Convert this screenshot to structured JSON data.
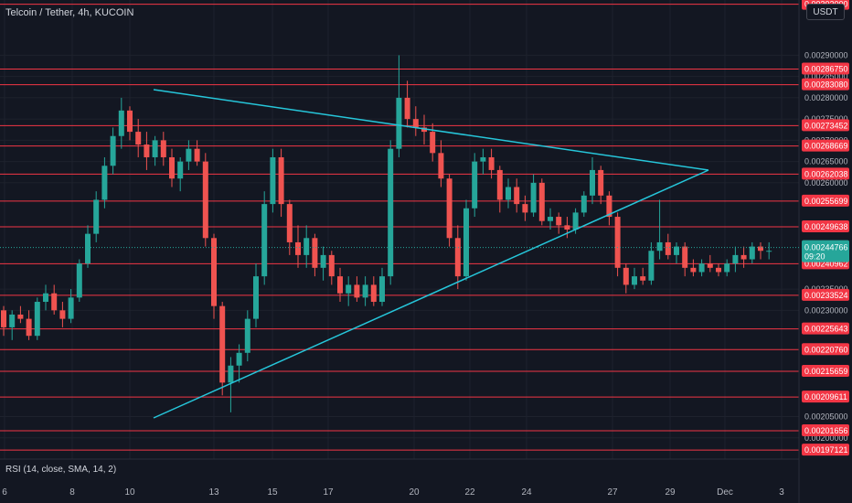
{
  "header": {
    "symbol_title": "Telcoin / Tether, 4h, KUCOIN",
    "currency": "USDT"
  },
  "indicator": {
    "label": "RSI (14, close, SMA, 14, 2)"
  },
  "colors": {
    "background": "#131722",
    "grid": "#1e222d",
    "hline": "#f23645",
    "trendline": "#26c6da",
    "up": "#26a69a",
    "down": "#ef5350",
    "axis_text": "#b2b5be"
  },
  "chart_data": {
    "type": "candlestick",
    "xlabel": "",
    "ylabel": "",
    "ylim": [
      0.00195,
      0.00303
    ],
    "x_ticks": [
      "6",
      "8",
      "10",
      "13",
      "15",
      "17",
      "20",
      "22",
      "24",
      "27",
      "29",
      "Dec",
      "3"
    ],
    "y_ticks": [
      "0.00290000",
      "0.00285000",
      "0.00280000",
      "0.00275000",
      "0.00270000",
      "0.00265000",
      "0.00260000",
      "0.00235000",
      "0.00230000",
      "0.00205000",
      "0.00200000"
    ],
    "horizontal_levels": [
      "0.00302000",
      "0.00286750",
      "0.00283080",
      "0.00273452",
      "0.00268669",
      "0.00262038",
      "0.00255699",
      "0.00249638",
      "0.00240962",
      "0.00233524",
      "0.00225643",
      "0.00220760",
      "0.00215659",
      "0.00209611",
      "0.00201656",
      "0.00197121"
    ],
    "last_price": {
      "value": "0.00244766",
      "countdown": "09:20"
    },
    "trendlines": [
      {
        "name": "upper",
        "from": [
          0.0,
          0.0028
        ],
        "to": [
          20.6,
          0.00261
        ]
      },
      {
        "name": "lower",
        "from": [
          0.0,
          0.00206
        ],
        "to": [
          20.6,
          0.0026
        ]
      }
    ],
    "candles": [
      [
        0.0023,
        0.00231,
        0.00224,
        0.00226
      ],
      [
        0.00226,
        0.0023,
        0.00223,
        0.00229
      ],
      [
        0.00229,
        0.00231,
        0.00227,
        0.00228
      ],
      [
        0.00228,
        0.0023,
        0.00223,
        0.00224
      ],
      [
        0.00224,
        0.00233,
        0.00223,
        0.00232
      ],
      [
        0.00232,
        0.00236,
        0.0023,
        0.00234
      ],
      [
        0.00234,
        0.00236,
        0.00229,
        0.0023
      ],
      [
        0.0023,
        0.00232,
        0.00226,
        0.00228
      ],
      [
        0.00228,
        0.00235,
        0.00227,
        0.00233
      ],
      [
        0.00233,
        0.00242,
        0.00232,
        0.00241
      ],
      [
        0.00241,
        0.0025,
        0.0024,
        0.00248
      ],
      [
        0.00248,
        0.00258,
        0.00246,
        0.00256
      ],
      [
        0.00256,
        0.00266,
        0.00254,
        0.00264
      ],
      [
        0.00264,
        0.00273,
        0.00262,
        0.00271
      ],
      [
        0.00271,
        0.0028,
        0.00268,
        0.00277
      ],
      [
        0.00277,
        0.00278,
        0.0027,
        0.00272
      ],
      [
        0.00272,
        0.00275,
        0.00266,
        0.00269
      ],
      [
        0.00269,
        0.00272,
        0.00263,
        0.00266
      ],
      [
        0.00266,
        0.00271,
        0.00264,
        0.0027
      ],
      [
        0.0027,
        0.00272,
        0.00264,
        0.00266
      ],
      [
        0.00266,
        0.00268,
        0.00259,
        0.00261
      ],
      [
        0.00261,
        0.00266,
        0.00258,
        0.00265
      ],
      [
        0.00265,
        0.0027,
        0.00263,
        0.00268
      ],
      [
        0.00268,
        0.0027,
        0.00264,
        0.00265
      ],
      [
        0.00265,
        0.00267,
        0.00245,
        0.00247
      ],
      [
        0.00247,
        0.00248,
        0.00228,
        0.00231
      ],
      [
        0.00231,
        0.00232,
        0.0021,
        0.00213
      ],
      [
        0.00213,
        0.00219,
        0.00206,
        0.00217
      ],
      [
        0.00217,
        0.00222,
        0.00213,
        0.0022
      ],
      [
        0.0022,
        0.0023,
        0.00218,
        0.00228
      ],
      [
        0.00228,
        0.00241,
        0.00226,
        0.00238
      ],
      [
        0.00238,
        0.00258,
        0.00236,
        0.00255
      ],
      [
        0.00255,
        0.00268,
        0.00253,
        0.00266
      ],
      [
        0.00266,
        0.00268,
        0.00252,
        0.00255
      ],
      [
        0.00255,
        0.00256,
        0.00243,
        0.00246
      ],
      [
        0.00246,
        0.0025,
        0.0024,
        0.00243
      ],
      [
        0.00243,
        0.0025,
        0.0024,
        0.00247
      ],
      [
        0.00247,
        0.00248,
        0.00238,
        0.0024
      ],
      [
        0.0024,
        0.00245,
        0.00237,
        0.00243
      ],
      [
        0.00243,
        0.00244,
        0.00236,
        0.00238
      ],
      [
        0.00238,
        0.0024,
        0.00232,
        0.00234
      ],
      [
        0.00234,
        0.00238,
        0.00231,
        0.00236
      ],
      [
        0.00236,
        0.00238,
        0.00232,
        0.00233
      ],
      [
        0.00233,
        0.00238,
        0.00231,
        0.00236
      ],
      [
        0.00236,
        0.00238,
        0.00231,
        0.00232
      ],
      [
        0.00232,
        0.0024,
        0.00231,
        0.00238
      ],
      [
        0.00238,
        0.0027,
        0.00236,
        0.00268
      ],
      [
        0.00268,
        0.0029,
        0.00266,
        0.0028
      ],
      [
        0.0028,
        0.00284,
        0.00273,
        0.00275
      ],
      [
        0.00275,
        0.00278,
        0.00271,
        0.00273
      ],
      [
        0.00273,
        0.00276,
        0.00269,
        0.00272
      ],
      [
        0.00272,
        0.00274,
        0.00265,
        0.00267
      ],
      [
        0.00267,
        0.0027,
        0.00259,
        0.00261
      ],
      [
        0.00261,
        0.00262,
        0.00245,
        0.00247
      ],
      [
        0.00247,
        0.0025,
        0.00235,
        0.00238
      ],
      [
        0.00238,
        0.00256,
        0.00237,
        0.00254
      ],
      [
        0.00254,
        0.00267,
        0.00252,
        0.00265
      ],
      [
        0.00265,
        0.00268,
        0.00262,
        0.00266
      ],
      [
        0.00266,
        0.00268,
        0.00261,
        0.00263
      ],
      [
        0.00263,
        0.00264,
        0.00253,
        0.00256
      ],
      [
        0.00256,
        0.00261,
        0.00254,
        0.00259
      ],
      [
        0.00259,
        0.00261,
        0.00253,
        0.00255
      ],
      [
        0.00255,
        0.00257,
        0.00251,
        0.00253
      ],
      [
        0.00253,
        0.00262,
        0.00252,
        0.0026
      ],
      [
        0.0026,
        0.00261,
        0.0025,
        0.00251
      ],
      [
        0.00251,
        0.00254,
        0.00249,
        0.00252
      ],
      [
        0.00252,
        0.00253,
        0.00248,
        0.0025
      ],
      [
        0.0025,
        0.00252,
        0.00247,
        0.00249
      ],
      [
        0.00249,
        0.00254,
        0.00248,
        0.00253
      ],
      [
        0.00253,
        0.00258,
        0.00252,
        0.00257
      ],
      [
        0.00257,
        0.00266,
        0.00255,
        0.00263
      ],
      [
        0.00263,
        0.00264,
        0.00255,
        0.00257
      ],
      [
        0.00257,
        0.00258,
        0.0025,
        0.00252
      ],
      [
        0.00252,
        0.00253,
        0.00238,
        0.0024
      ],
      [
        0.0024,
        0.00241,
        0.00234,
        0.00236
      ],
      [
        0.00236,
        0.0024,
        0.00235,
        0.00238
      ],
      [
        0.00238,
        0.0024,
        0.00236,
        0.00237
      ],
      [
        0.00237,
        0.00246,
        0.00236,
        0.00244
      ],
      [
        0.00244,
        0.00256,
        0.00242,
        0.00246
      ],
      [
        0.00246,
        0.00248,
        0.00242,
        0.00243
      ],
      [
        0.00243,
        0.00246,
        0.00241,
        0.00245
      ],
      [
        0.00245,
        0.00246,
        0.00238,
        0.0024
      ],
      [
        0.0024,
        0.00242,
        0.00238,
        0.00239
      ],
      [
        0.00239,
        0.00242,
        0.00238,
        0.00241
      ],
      [
        0.00241,
        0.00243,
        0.00239,
        0.0024
      ],
      [
        0.0024,
        0.00241,
        0.00238,
        0.00239
      ],
      [
        0.00239,
        0.00242,
        0.00238,
        0.00241
      ],
      [
        0.00241,
        0.00245,
        0.00239,
        0.00243
      ],
      [
        0.00243,
        0.00245,
        0.0024,
        0.00242
      ],
      [
        0.00242,
        0.00246,
        0.00241,
        0.00245
      ],
      [
        0.00245,
        0.00246,
        0.00242,
        0.00244
      ],
      [
        0.00244,
        0.00246,
        0.00242,
        0.00244
      ]
    ]
  }
}
